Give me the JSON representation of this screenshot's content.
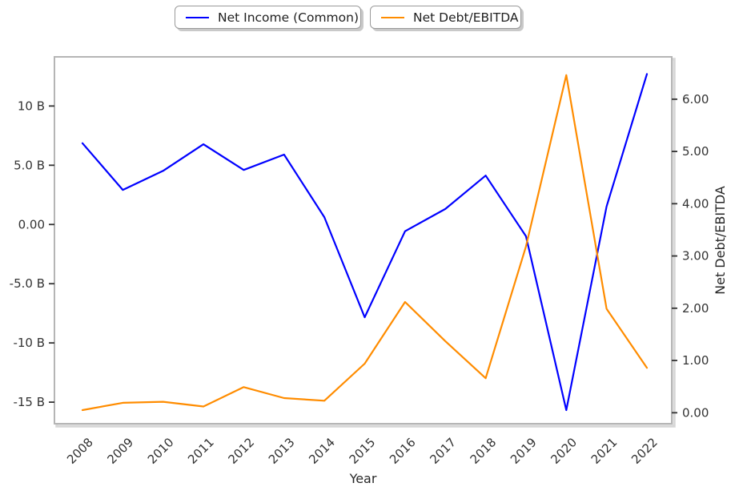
{
  "legend": {
    "items": [
      {
        "label": "Net Income (Common)",
        "color": "#0000ff"
      },
      {
        "label": "Net Debt/EBITDA",
        "color": "#ff8c00"
      }
    ]
  },
  "chart_data": {
    "type": "line",
    "title": "",
    "xlabel": "Year",
    "right_ylabel": "Net Debt/EBITDA",
    "grid": false,
    "legend_position": "top-center, two separate shadowed boxes",
    "categories": [
      "2008",
      "2009",
      "2010",
      "2011",
      "2012",
      "2013",
      "2014",
      "2015",
      "2016",
      "2017",
      "2018",
      "2019",
      "2020",
      "2021",
      "2022"
    ],
    "series": [
      {
        "name": "Net Income (Common)",
        "axis": "left",
        "unit": "billions USD",
        "color": "#0000ff",
        "values": [
          6.86,
          2.92,
          4.53,
          6.77,
          4.6,
          5.9,
          0.62,
          -7.83,
          -0.57,
          1.31,
          4.13,
          -0.99,
          -15.67,
          1.52,
          12.7
        ]
      },
      {
        "name": "Net Debt/EBITDA",
        "axis": "right",
        "unit": "ratio",
        "color": "#ff8c00",
        "values": [
          0.05,
          0.19,
          0.21,
          0.12,
          0.49,
          0.28,
          0.23,
          0.94,
          2.12,
          1.37,
          0.66,
          3.18,
          6.46,
          1.99,
          0.86
        ]
      }
    ],
    "left_axis": {
      "range": [
        -16.82,
        14.15
      ],
      "ticks": [
        {
          "v": 10,
          "label": "10 B"
        },
        {
          "v": 5,
          "label": "5.0 B"
        },
        {
          "v": 0,
          "label": "0.00"
        },
        {
          "v": -5,
          "label": "-5.0 B"
        },
        {
          "v": -10,
          "label": "-10 B"
        },
        {
          "v": -15,
          "label": "-15 B"
        }
      ]
    },
    "right_axis": {
      "range": [
        -0.21,
        6.81
      ],
      "ticks": [
        {
          "v": 6,
          "label": "6.00"
        },
        {
          "v": 5,
          "label": "5.00"
        },
        {
          "v": 4,
          "label": "4.00"
        },
        {
          "v": 3,
          "label": "3.00"
        },
        {
          "v": 2,
          "label": "2.00"
        },
        {
          "v": 1,
          "label": "1.00"
        },
        {
          "v": 0,
          "label": "0.00"
        }
      ]
    }
  },
  "colors": {
    "frame": "#b5b5b5",
    "frame_shadow": "#d7d7d7",
    "tick_text": "#333333"
  }
}
